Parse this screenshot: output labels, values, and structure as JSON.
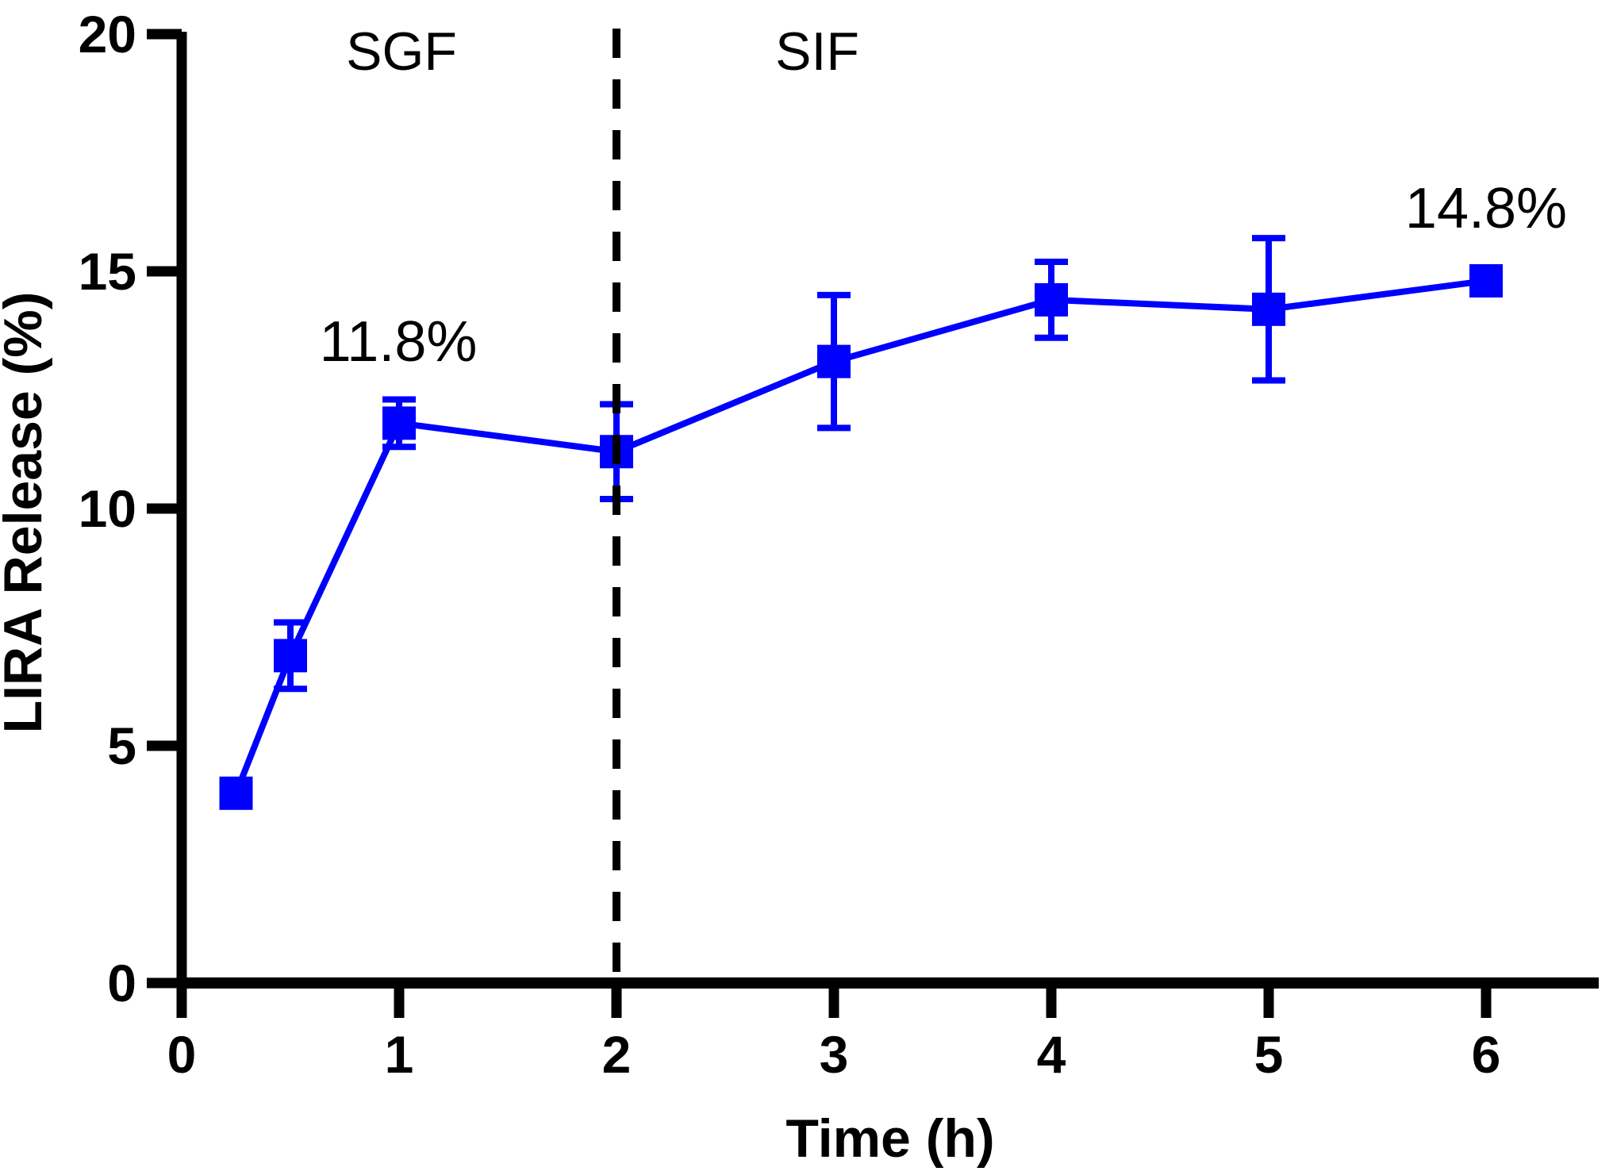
{
  "figure": {
    "background": "#FFFFFF"
  },
  "chart_data": {
    "type": "line",
    "title": "",
    "xlabel": "Time (h)",
    "ylabel": "LIRA Release (%)",
    "xlim": [
      0,
      6.5
    ],
    "ylim": [
      0,
      20
    ],
    "grid": false,
    "legend": "none",
    "x_ticks": [
      0,
      1,
      2,
      3,
      4,
      5,
      6
    ],
    "x_tick_labels": [
      "0",
      "1",
      "2",
      "3",
      "4",
      "5",
      "6"
    ],
    "y_ticks": [
      0,
      5,
      10,
      15,
      20
    ],
    "y_tick_labels": [
      "0",
      "5",
      "10",
      "15",
      "20"
    ],
    "series": [
      {
        "name": "LIRA release",
        "color": "#0000FF",
        "marker": "square",
        "x": [
          0.25,
          0.5,
          1,
          2,
          3,
          4,
          5,
          6
        ],
        "y": [
          4.0,
          6.9,
          11.8,
          11.2,
          13.1,
          14.4,
          14.2,
          14.8
        ],
        "yerr": [
          0,
          0.7,
          0.5,
          1.0,
          1.4,
          0.8,
          1.5,
          0
        ]
      }
    ],
    "annotations": [
      {
        "text": "11.8%",
        "at_x": 1,
        "at_y": 11.8
      },
      {
        "text": "14.8%",
        "at_x": 6,
        "at_y": 14.8
      }
    ],
    "divider": {
      "x": 2,
      "style": "dashed",
      "color": "#000000"
    },
    "regions": [
      {
        "label": "SGF",
        "side": "left"
      },
      {
        "label": "SIF",
        "side": "right"
      }
    ],
    "colors": {
      "series": "#0000FF",
      "axis": "#000000",
      "divider": "#000000"
    }
  }
}
